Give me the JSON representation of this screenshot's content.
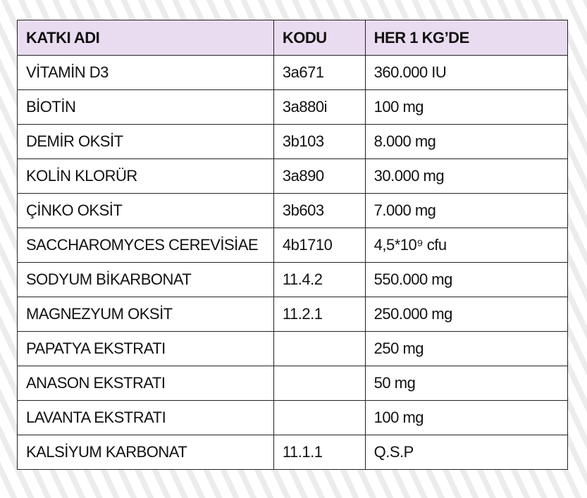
{
  "table": {
    "header": [
      "KATKI ADI",
      "KODU",
      "HER 1 KG’DE"
    ],
    "rows": [
      [
        "VİTAMİN D3",
        "3a671",
        "360.000 IU"
      ],
      [
        "BİOTİN",
        "3a880i",
        "100 mg"
      ],
      [
        "DEMİR OKSİT",
        "3b103",
        "8.000 mg"
      ],
      [
        "KOLİN KLORÜR",
        "3a890",
        "30.000 mg"
      ],
      [
        "ÇİNKO OKSİT",
        "3b603",
        "7.000 mg"
      ],
      [
        "SACCHAROMYCES CEREVİSİAE",
        "4b1710",
        "4,5*10⁹ cfu"
      ],
      [
        "SODYUM BİKARBONAT",
        "11.4.2",
        "550.000 mg"
      ],
      [
        "MAGNEZYUM OKSİT",
        "11.2.1",
        "250.000 mg"
      ],
      [
        "PAPATYA EKSTRATI",
        null,
        "250 mg"
      ],
      [
        "ANASON EKSTRATI",
        null,
        "50 mg"
      ],
      [
        "LAVANTA EKSTRATI",
        null,
        "100 mg"
      ],
      [
        "KALSİYUM KARBONAT",
        "11.1.1",
        "Q.S.P"
      ]
    ]
  }
}
